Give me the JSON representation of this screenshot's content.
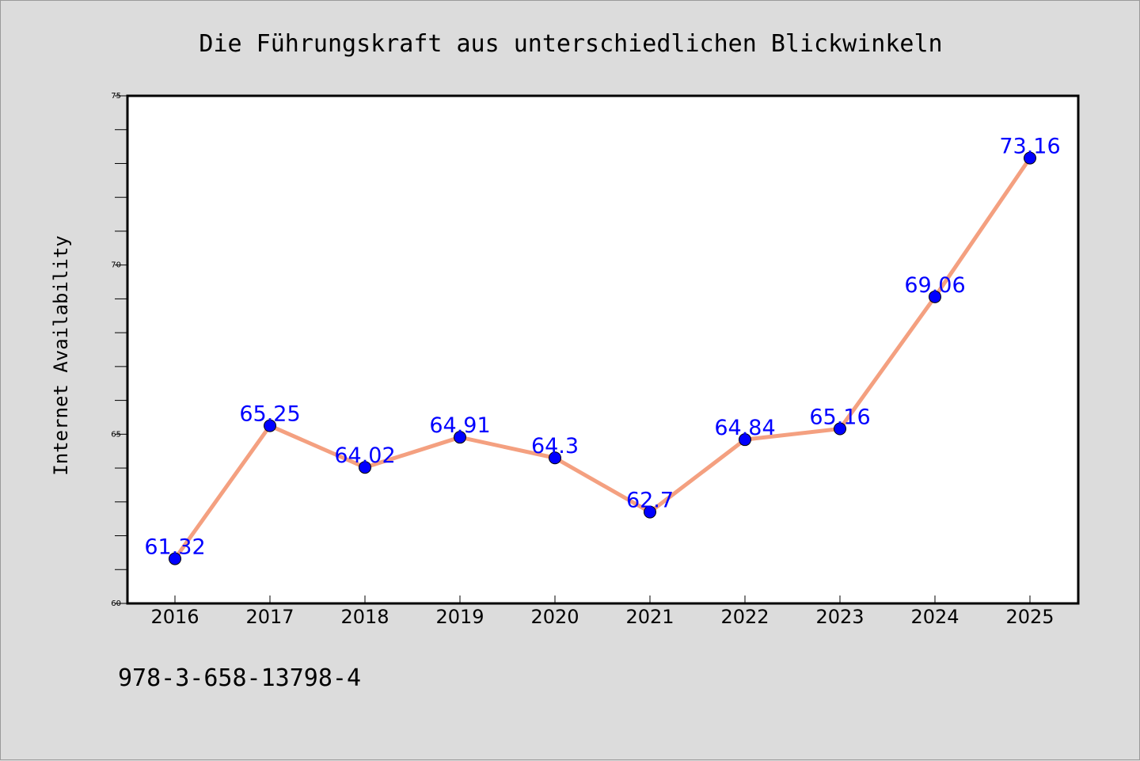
{
  "chart_data": {
    "type": "line",
    "title": "Die Führungskraft aus unterschiedlichen Blickwinkeln",
    "xlabel": "",
    "ylabel": "Internet Availability",
    "categories": [
      "2016",
      "2017",
      "2018",
      "2019",
      "2020",
      "2021",
      "2022",
      "2023",
      "2024",
      "2025"
    ],
    "series": [
      {
        "values": [
          61.32,
          65.25,
          64.02,
          64.91,
          64.3,
          62.7,
          64.84,
          65.16,
          69.06,
          73.16
        ]
      }
    ],
    "data_labels": [
      "61.32",
      "65.25",
      "64.02",
      "64.91",
      "64.3",
      "62.7",
      "64.84",
      "65.16",
      "69.06",
      "73.16"
    ],
    "ylim": [
      60,
      75
    ],
    "yticks": [
      "60",
      "65",
      "70",
      "75"
    ],
    "grid": false,
    "legend": "none",
    "colors": {
      "line": "#f4a080",
      "marker": "#0000ff",
      "label": "#0000ff",
      "background": "#dcdcdc",
      "plot_background": "#ffffff"
    }
  },
  "footer": {
    "isbn": "978-3-658-13798-4"
  }
}
